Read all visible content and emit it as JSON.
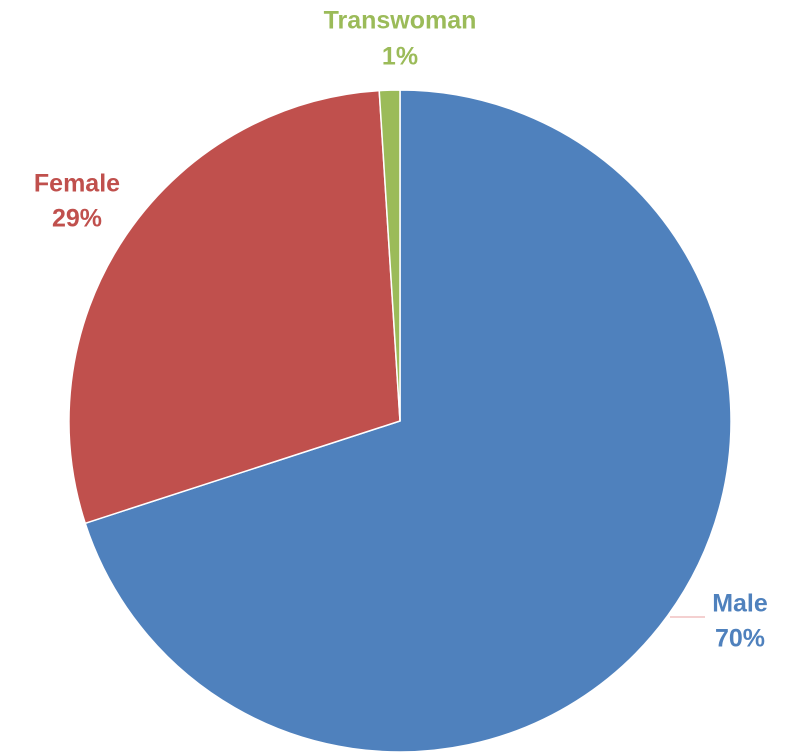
{
  "chart_data": {
    "type": "pie",
    "categories": [
      "Male",
      "Female",
      "Transwoman"
    ],
    "values": [
      70,
      29,
      1
    ],
    "value_labels": [
      "70%",
      "29%",
      "1%"
    ],
    "colors": [
      "#4f81bd",
      "#c0504d",
      "#9bbb59"
    ]
  }
}
